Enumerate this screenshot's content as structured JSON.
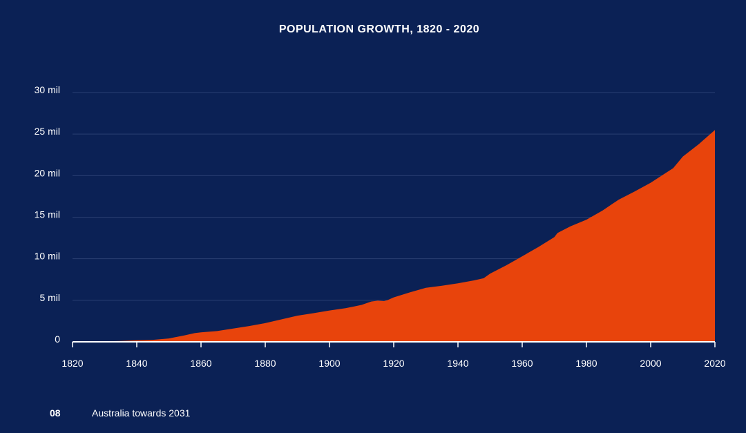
{
  "colors": {
    "background": "#0b2155",
    "area_fill": "#e8440c",
    "gridline": "#2a3f72",
    "axis": "#ffffff",
    "text": "#ffffff"
  },
  "chart_data": {
    "type": "area",
    "title": "POPULATION GROWTH, 1820 - 2020",
    "xlabel": "",
    "ylabel": "",
    "xlim": [
      1820,
      2020
    ],
    "ylim": [
      0,
      30
    ],
    "grid": true,
    "x_ticks": [
      1820,
      1840,
      1860,
      1880,
      1900,
      1920,
      1940,
      1960,
      1980,
      2000,
      2020
    ],
    "x_tick_labels": [
      "1820",
      "1840",
      "1860",
      "1880",
      "1900",
      "1920",
      "1940",
      "1960",
      "1980",
      "2000",
      "2020"
    ],
    "y_ticks": [
      0,
      5,
      10,
      15,
      20,
      25,
      30
    ],
    "y_tick_labels": [
      "0",
      "5 mil",
      "10 mil",
      "15 mil",
      "20 mil",
      "25 mil",
      "30 mil"
    ],
    "series": [
      {
        "x": [
          1820,
          1825,
          1830,
          1835,
          1840,
          1845,
          1850,
          1855,
          1858,
          1860,
          1865,
          1870,
          1875,
          1880,
          1885,
          1890,
          1895,
          1900,
          1905,
          1910,
          1913,
          1915,
          1917,
          1918,
          1920,
          1925,
          1930,
          1935,
          1940,
          1945,
          1948,
          1950,
          1955,
          1960,
          1965,
          1970,
          1971,
          1975,
          1980,
          1985,
          1990,
          1995,
          2000,
          2005,
          2007,
          2010,
          2015,
          2020
        ],
        "values": [
          0.03,
          0.05,
          0.07,
          0.11,
          0.19,
          0.24,
          0.41,
          0.79,
          1.05,
          1.15,
          1.3,
          1.6,
          1.9,
          2.25,
          2.7,
          3.15,
          3.45,
          3.77,
          4.05,
          4.45,
          4.85,
          4.95,
          4.9,
          5.0,
          5.35,
          5.95,
          6.5,
          6.75,
          7.05,
          7.4,
          7.65,
          8.2,
          9.2,
          10.3,
          11.4,
          12.6,
          13.1,
          13.9,
          14.7,
          15.8,
          17.1,
          18.1,
          19.15,
          20.4,
          20.9,
          22.3,
          23.8,
          25.5
        ]
      }
    ]
  },
  "footer": {
    "page_number": "08",
    "document_title": "Australia towards 2031"
  }
}
